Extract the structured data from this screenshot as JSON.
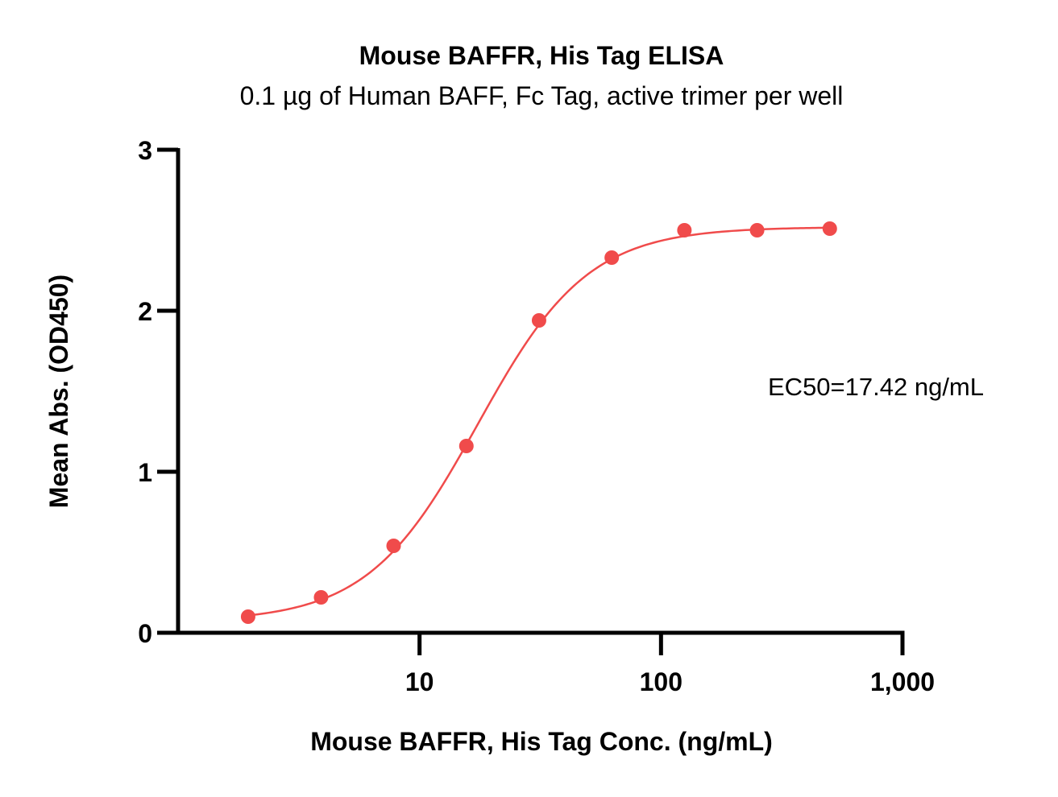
{
  "chart_data": {
    "type": "scatter",
    "title": "Mouse BAFFR, His Tag ELISA",
    "subtitle": "0.1 µg of Human BAFF, Fc Tag, active trimer per well",
    "xlabel": "Mouse BAFFR, His Tag Conc. (ng/mL)",
    "ylabel": "Mean Abs. (OD450)",
    "x_scale": "log",
    "xlim": [
      1.0,
      1000
    ],
    "ylim": [
      0,
      3
    ],
    "x_ticks": [
      {
        "value": 10,
        "label": "10"
      },
      {
        "value": 100,
        "label": "100"
      },
      {
        "value": 1000,
        "label": "1,000"
      }
    ],
    "y_ticks": [
      {
        "value": 0,
        "label": "0"
      },
      {
        "value": 1,
        "label": "1"
      },
      {
        "value": 2,
        "label": "2"
      },
      {
        "value": 3,
        "label": "3"
      }
    ],
    "grid": false,
    "series": [
      {
        "color": "#f04b4b",
        "x": [
          1.95,
          3.91,
          7.81,
          15.63,
          31.25,
          62.5,
          125,
          250,
          500
        ],
        "y": [
          0.1,
          0.22,
          0.54,
          1.16,
          1.94,
          2.33,
          2.5,
          2.5,
          2.51
        ]
      }
    ],
    "fit": {
      "model": "4PL",
      "bottom": 0.07,
      "top": 2.52,
      "ec50": 17.42,
      "hill": 1.9,
      "color": "#f04b4b"
    },
    "annotations": [
      {
        "text": "EC50=17.42 ng/mL"
      }
    ]
  }
}
